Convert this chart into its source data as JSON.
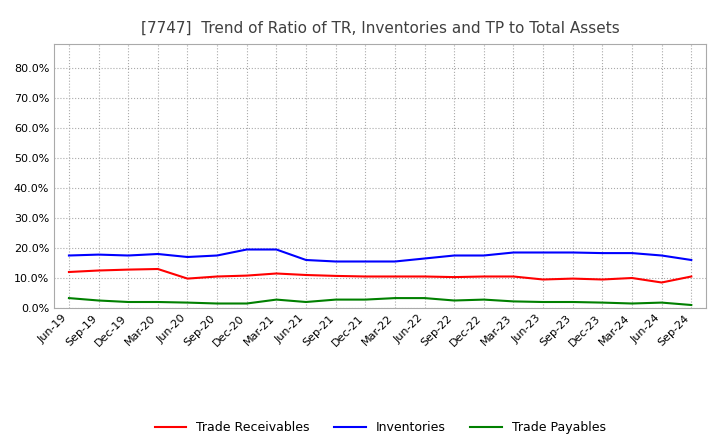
{
  "title": "[7747]  Trend of Ratio of TR, Inventories and TP to Total Assets",
  "title_fontsize": 11,
  "title_color": "#404040",
  "ylim": [
    0.0,
    0.88
  ],
  "yticks": [
    0.0,
    0.1,
    0.2,
    0.3,
    0.4,
    0.5,
    0.6,
    0.7,
    0.8
  ],
  "yticklabels": [
    "0.0%",
    "10.0%",
    "20.0%",
    "30.0%",
    "40.0%",
    "50.0%",
    "60.0%",
    "70.0%",
    "80.0%"
  ],
  "background_color": "#ffffff",
  "grid_color": "#aaaaaa",
  "legend_labels": [
    "Trade Receivables",
    "Inventories",
    "Trade Payables"
  ],
  "legend_colors": [
    "#ff0000",
    "#0000ff",
    "#008000"
  ],
  "dates": [
    "Jun-19",
    "Sep-19",
    "Dec-19",
    "Mar-20",
    "Jun-20",
    "Sep-20",
    "Dec-20",
    "Mar-21",
    "Jun-21",
    "Sep-21",
    "Dec-21",
    "Mar-22",
    "Jun-22",
    "Sep-22",
    "Dec-22",
    "Mar-23",
    "Jun-23",
    "Sep-23",
    "Dec-23",
    "Mar-24",
    "Jun-24",
    "Sep-24"
  ],
  "trade_receivables": [
    0.12,
    0.125,
    0.128,
    0.13,
    0.098,
    0.105,
    0.108,
    0.115,
    0.11,
    0.107,
    0.105,
    0.105,
    0.105,
    0.103,
    0.105,
    0.105,
    0.095,
    0.098,
    0.095,
    0.1,
    0.085,
    0.105
  ],
  "inventories": [
    0.175,
    0.178,
    0.175,
    0.18,
    0.17,
    0.175,
    0.195,
    0.195,
    0.16,
    0.155,
    0.155,
    0.155,
    0.165,
    0.175,
    0.175,
    0.185,
    0.185,
    0.185,
    0.183,
    0.183,
    0.175,
    0.16
  ],
  "trade_payables": [
    0.033,
    0.025,
    0.02,
    0.02,
    0.018,
    0.015,
    0.015,
    0.028,
    0.02,
    0.028,
    0.028,
    0.033,
    0.033,
    0.025,
    0.028,
    0.022,
    0.02,
    0.02,
    0.018,
    0.015,
    0.018,
    0.01
  ]
}
